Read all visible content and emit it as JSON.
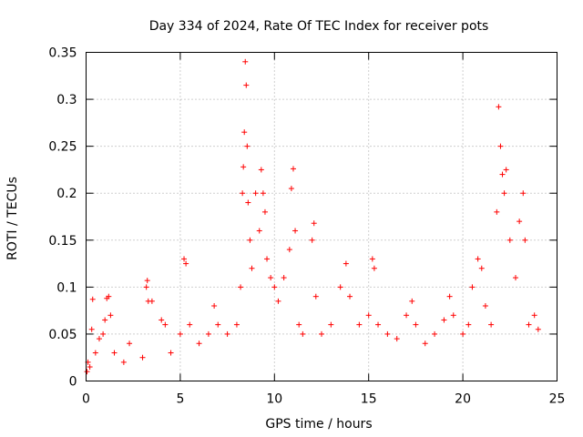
{
  "chart_data": {
    "type": "scatter",
    "title": "Day 334 of 2024, Rate Of TEC Index for receiver pots",
    "xlabel": "GPS time / hours",
    "ylabel": "ROTI / TECUs",
    "xlim": [
      0,
      25
    ],
    "ylim": [
      0,
      0.35
    ],
    "xticks": [
      0,
      5,
      10,
      15,
      20,
      25
    ],
    "xtick_labels": [
      "0",
      "5",
      "10",
      "15",
      "20",
      "25"
    ],
    "yticks": [
      0,
      0.05,
      0.1,
      0.15,
      0.2,
      0.25,
      0.3,
      0.35
    ],
    "ytick_labels": [
      "0",
      "0.05",
      "0.1",
      "0.15",
      "0.2",
      "0.25",
      "0.3",
      "0.35"
    ],
    "grid": true,
    "marker": "+",
    "color": "#ff0000",
    "series": [
      {
        "name": "ROTI",
        "points": [
          [
            0.05,
            0.01
          ],
          [
            0.1,
            0.02
          ],
          [
            0.2,
            0.015
          ],
          [
            0.3,
            0.055
          ],
          [
            0.35,
            0.087
          ],
          [
            0.5,
            0.03
          ],
          [
            0.7,
            0.045
          ],
          [
            0.9,
            0.05
          ],
          [
            1.0,
            0.065
          ],
          [
            1.1,
            0.088
          ],
          [
            1.2,
            0.09
          ],
          [
            1.3,
            0.07
          ],
          [
            1.5,
            0.03
          ],
          [
            2.0,
            0.02
          ],
          [
            2.3,
            0.04
          ],
          [
            3.0,
            0.025
          ],
          [
            3.2,
            0.1
          ],
          [
            3.25,
            0.107
          ],
          [
            3.3,
            0.085
          ],
          [
            3.5,
            0.085
          ],
          [
            4.0,
            0.065
          ],
          [
            4.2,
            0.06
          ],
          [
            4.5,
            0.03
          ],
          [
            5.0,
            0.05
          ],
          [
            5.2,
            0.13
          ],
          [
            5.3,
            0.125
          ],
          [
            5.5,
            0.06
          ],
          [
            6.0,
            0.04
          ],
          [
            6.5,
            0.05
          ],
          [
            6.8,
            0.08
          ],
          [
            7.0,
            0.06
          ],
          [
            7.5,
            0.05
          ],
          [
            8.0,
            0.06
          ],
          [
            8.2,
            0.1
          ],
          [
            8.3,
            0.2
          ],
          [
            8.35,
            0.228
          ],
          [
            8.4,
            0.265
          ],
          [
            8.45,
            0.34
          ],
          [
            8.5,
            0.315
          ],
          [
            8.55,
            0.25
          ],
          [
            8.6,
            0.19
          ],
          [
            8.7,
            0.15
          ],
          [
            8.8,
            0.12
          ],
          [
            9.0,
            0.2
          ],
          [
            9.2,
            0.16
          ],
          [
            9.3,
            0.225
          ],
          [
            9.4,
            0.2
          ],
          [
            9.5,
            0.18
          ],
          [
            9.6,
            0.13
          ],
          [
            9.8,
            0.11
          ],
          [
            10.0,
            0.1
          ],
          [
            10.2,
            0.085
          ],
          [
            10.5,
            0.11
          ],
          [
            10.8,
            0.14
          ],
          [
            10.9,
            0.205
          ],
          [
            11.0,
            0.226
          ],
          [
            11.1,
            0.16
          ],
          [
            11.3,
            0.06
          ],
          [
            11.5,
            0.05
          ],
          [
            12.0,
            0.15
          ],
          [
            12.1,
            0.168
          ],
          [
            12.2,
            0.09
          ],
          [
            12.5,
            0.05
          ],
          [
            13.0,
            0.06
          ],
          [
            13.5,
            0.1
          ],
          [
            13.8,
            0.125
          ],
          [
            14.0,
            0.09
          ],
          [
            14.5,
            0.06
          ],
          [
            15.0,
            0.07
          ],
          [
            15.2,
            0.13
          ],
          [
            15.3,
            0.12
          ],
          [
            15.5,
            0.06
          ],
          [
            16.0,
            0.05
          ],
          [
            16.5,
            0.045
          ],
          [
            17.0,
            0.07
          ],
          [
            17.3,
            0.085
          ],
          [
            17.5,
            0.06
          ],
          [
            18.0,
            0.04
          ],
          [
            18.5,
            0.05
          ],
          [
            19.0,
            0.065
          ],
          [
            19.3,
            0.09
          ],
          [
            19.5,
            0.07
          ],
          [
            20.0,
            0.05
          ],
          [
            20.3,
            0.06
          ],
          [
            20.5,
            0.1
          ],
          [
            20.8,
            0.13
          ],
          [
            21.0,
            0.12
          ],
          [
            21.2,
            0.08
          ],
          [
            21.5,
            0.06
          ],
          [
            21.8,
            0.18
          ],
          [
            21.9,
            0.292
          ],
          [
            22.0,
            0.25
          ],
          [
            22.1,
            0.22
          ],
          [
            22.2,
            0.2
          ],
          [
            22.3,
            0.225
          ],
          [
            22.5,
            0.15
          ],
          [
            22.8,
            0.11
          ],
          [
            23.0,
            0.17
          ],
          [
            23.2,
            0.2
          ],
          [
            23.3,
            0.15
          ],
          [
            23.5,
            0.06
          ],
          [
            23.8,
            0.07
          ],
          [
            24.0,
            0.055
          ]
        ]
      }
    ]
  }
}
